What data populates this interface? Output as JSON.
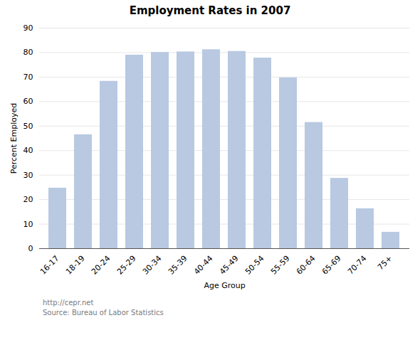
{
  "chart_data": {
    "type": "bar",
    "title": "Employment Rates in 2007",
    "xlabel": "Age Group",
    "ylabel": "Percent Employed",
    "categories": [
      "16-17",
      "18-19",
      "20-24",
      "25-29",
      "30-34",
      "35-39",
      "40-44",
      "45-49",
      "50-54",
      "55-59",
      "60-64",
      "65-69",
      "70-74",
      "75+"
    ],
    "values": [
      24.7,
      46.5,
      68.3,
      79.0,
      80.1,
      80.3,
      81.2,
      80.5,
      77.8,
      69.7,
      51.5,
      28.7,
      16.3,
      6.7
    ],
    "color": "#b8c9e1",
    "ylim": [
      0,
      90
    ],
    "yticks": [
      0,
      10,
      20,
      30,
      40,
      50,
      60,
      70,
      80,
      90
    ],
    "grid": true,
    "annotations": [
      "http://cepr.net",
      "Source: Bureau of Labor Statistics"
    ]
  }
}
